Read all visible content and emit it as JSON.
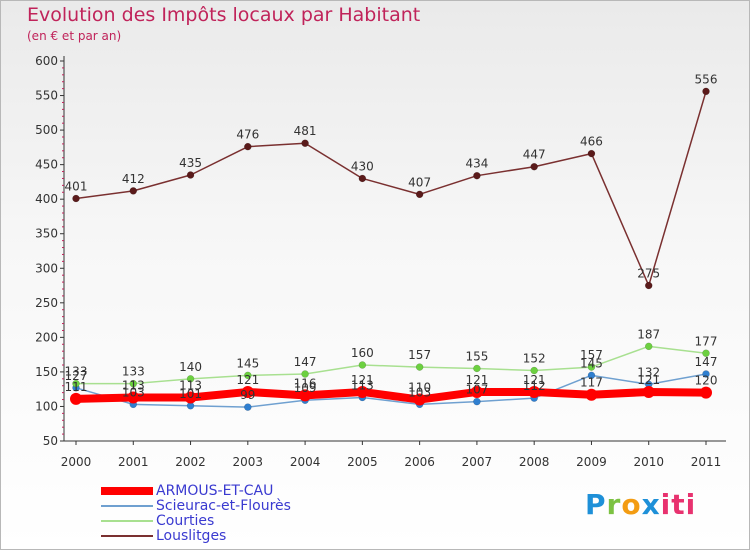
{
  "header": {
    "title": "Evolution des Impôts locaux par Habitant",
    "subtitle": "(en € et par an)"
  },
  "logo": {
    "text": "Proxiti"
  },
  "chart_data": {
    "type": "line",
    "title": "Evolution des Impôts locaux par Habitant",
    "subtitle": "(en € et par an)",
    "xlabel": "",
    "ylabel": "",
    "ylim": [
      50,
      600
    ],
    "ytick_step": 50,
    "x": [
      "2000",
      "2001",
      "2002",
      "2003",
      "2004",
      "2005",
      "2006",
      "2007",
      "2008",
      "2009",
      "2010",
      "2011"
    ],
    "grid": false,
    "legend_position": "bottom-left",
    "series": [
      {
        "name": "ARMOUS-ET-CAU",
        "color": "#ff0000",
        "marker_color": "#ff0000",
        "values": [
          111,
          113,
          113,
          121,
          116,
          121,
          110,
          121,
          121,
          117,
          121,
          120
        ],
        "labels": [
          "111",
          "113",
          "113",
          "121",
          "116",
          "121",
          "110",
          "121",
          "121",
          "117",
          "121",
          "120"
        ]
      },
      {
        "name": "Scieurac-et-Flourès",
        "color": "#6fa0d0",
        "marker_color": "#2f7fd0",
        "values": [
          127,
          103,
          101,
          99,
          109,
          113,
          103,
          107,
          112,
          145,
          132,
          147
        ],
        "labels": [
          "127",
          "103",
          "101",
          "99",
          "109",
          "113",
          "103",
          "107",
          "112",
          "145",
          "132",
          "147"
        ]
      },
      {
        "name": "Courties",
        "color": "#a8e090",
        "marker_color": "#6cd040",
        "values": [
          133,
          133,
          140,
          145,
          147,
          160,
          157,
          155,
          152,
          157,
          187,
          177
        ],
        "labels": [
          "133",
          "133",
          "140",
          "145",
          "147",
          "160",
          "157",
          "155",
          "152",
          "157",
          "187",
          "177"
        ]
      },
      {
        "name": "Louslitges",
        "color": "#7a3030",
        "marker_color": "#5a1a1a",
        "values": [
          401,
          412,
          435,
          476,
          481,
          430,
          407,
          434,
          447,
          466,
          275,
          556
        ],
        "labels": [
          "401",
          "412",
          "435",
          "476",
          "481",
          "430",
          "407",
          "434",
          "447",
          "466",
          "275",
          "556"
        ]
      }
    ]
  }
}
